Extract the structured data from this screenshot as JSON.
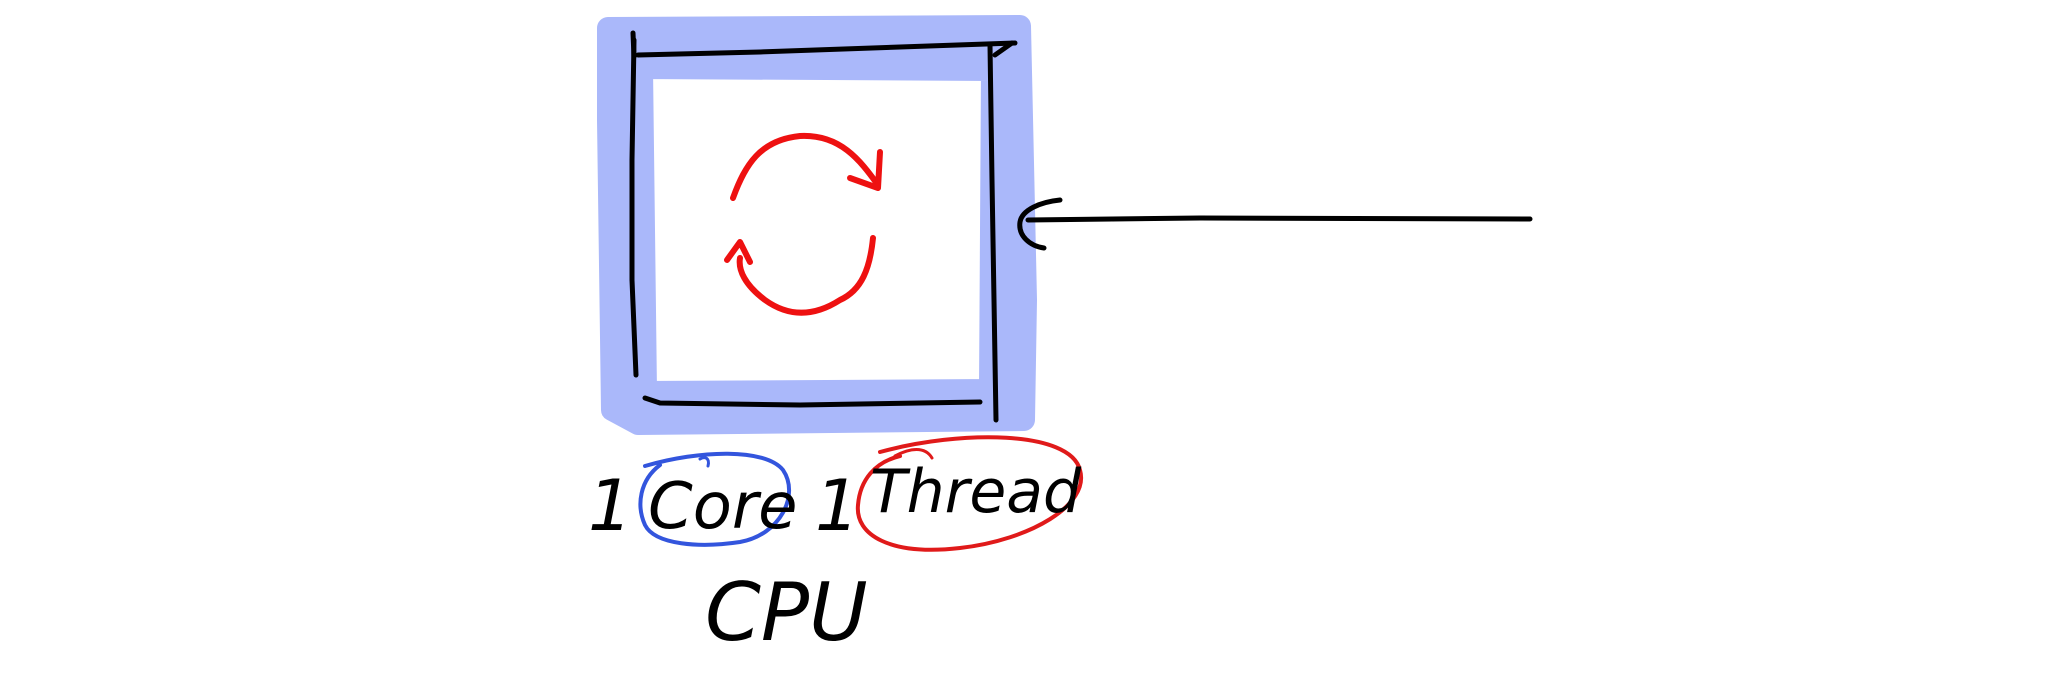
{
  "labels": {
    "core_count": "1",
    "core_word": "Core",
    "thread_count": "1",
    "thread_word": "Thread",
    "cpu": "CPU"
  },
  "colors": {
    "highlight": "#aab8fa",
    "ink": "#000000",
    "loop": "#ee1111",
    "core_circle": "#3355dd",
    "thread_circle": "#e01a1a",
    "background": "#ffffff"
  },
  "icons": {
    "loop": "cycle-arrows-icon",
    "input_arrow": "arrow-left-icon"
  }
}
